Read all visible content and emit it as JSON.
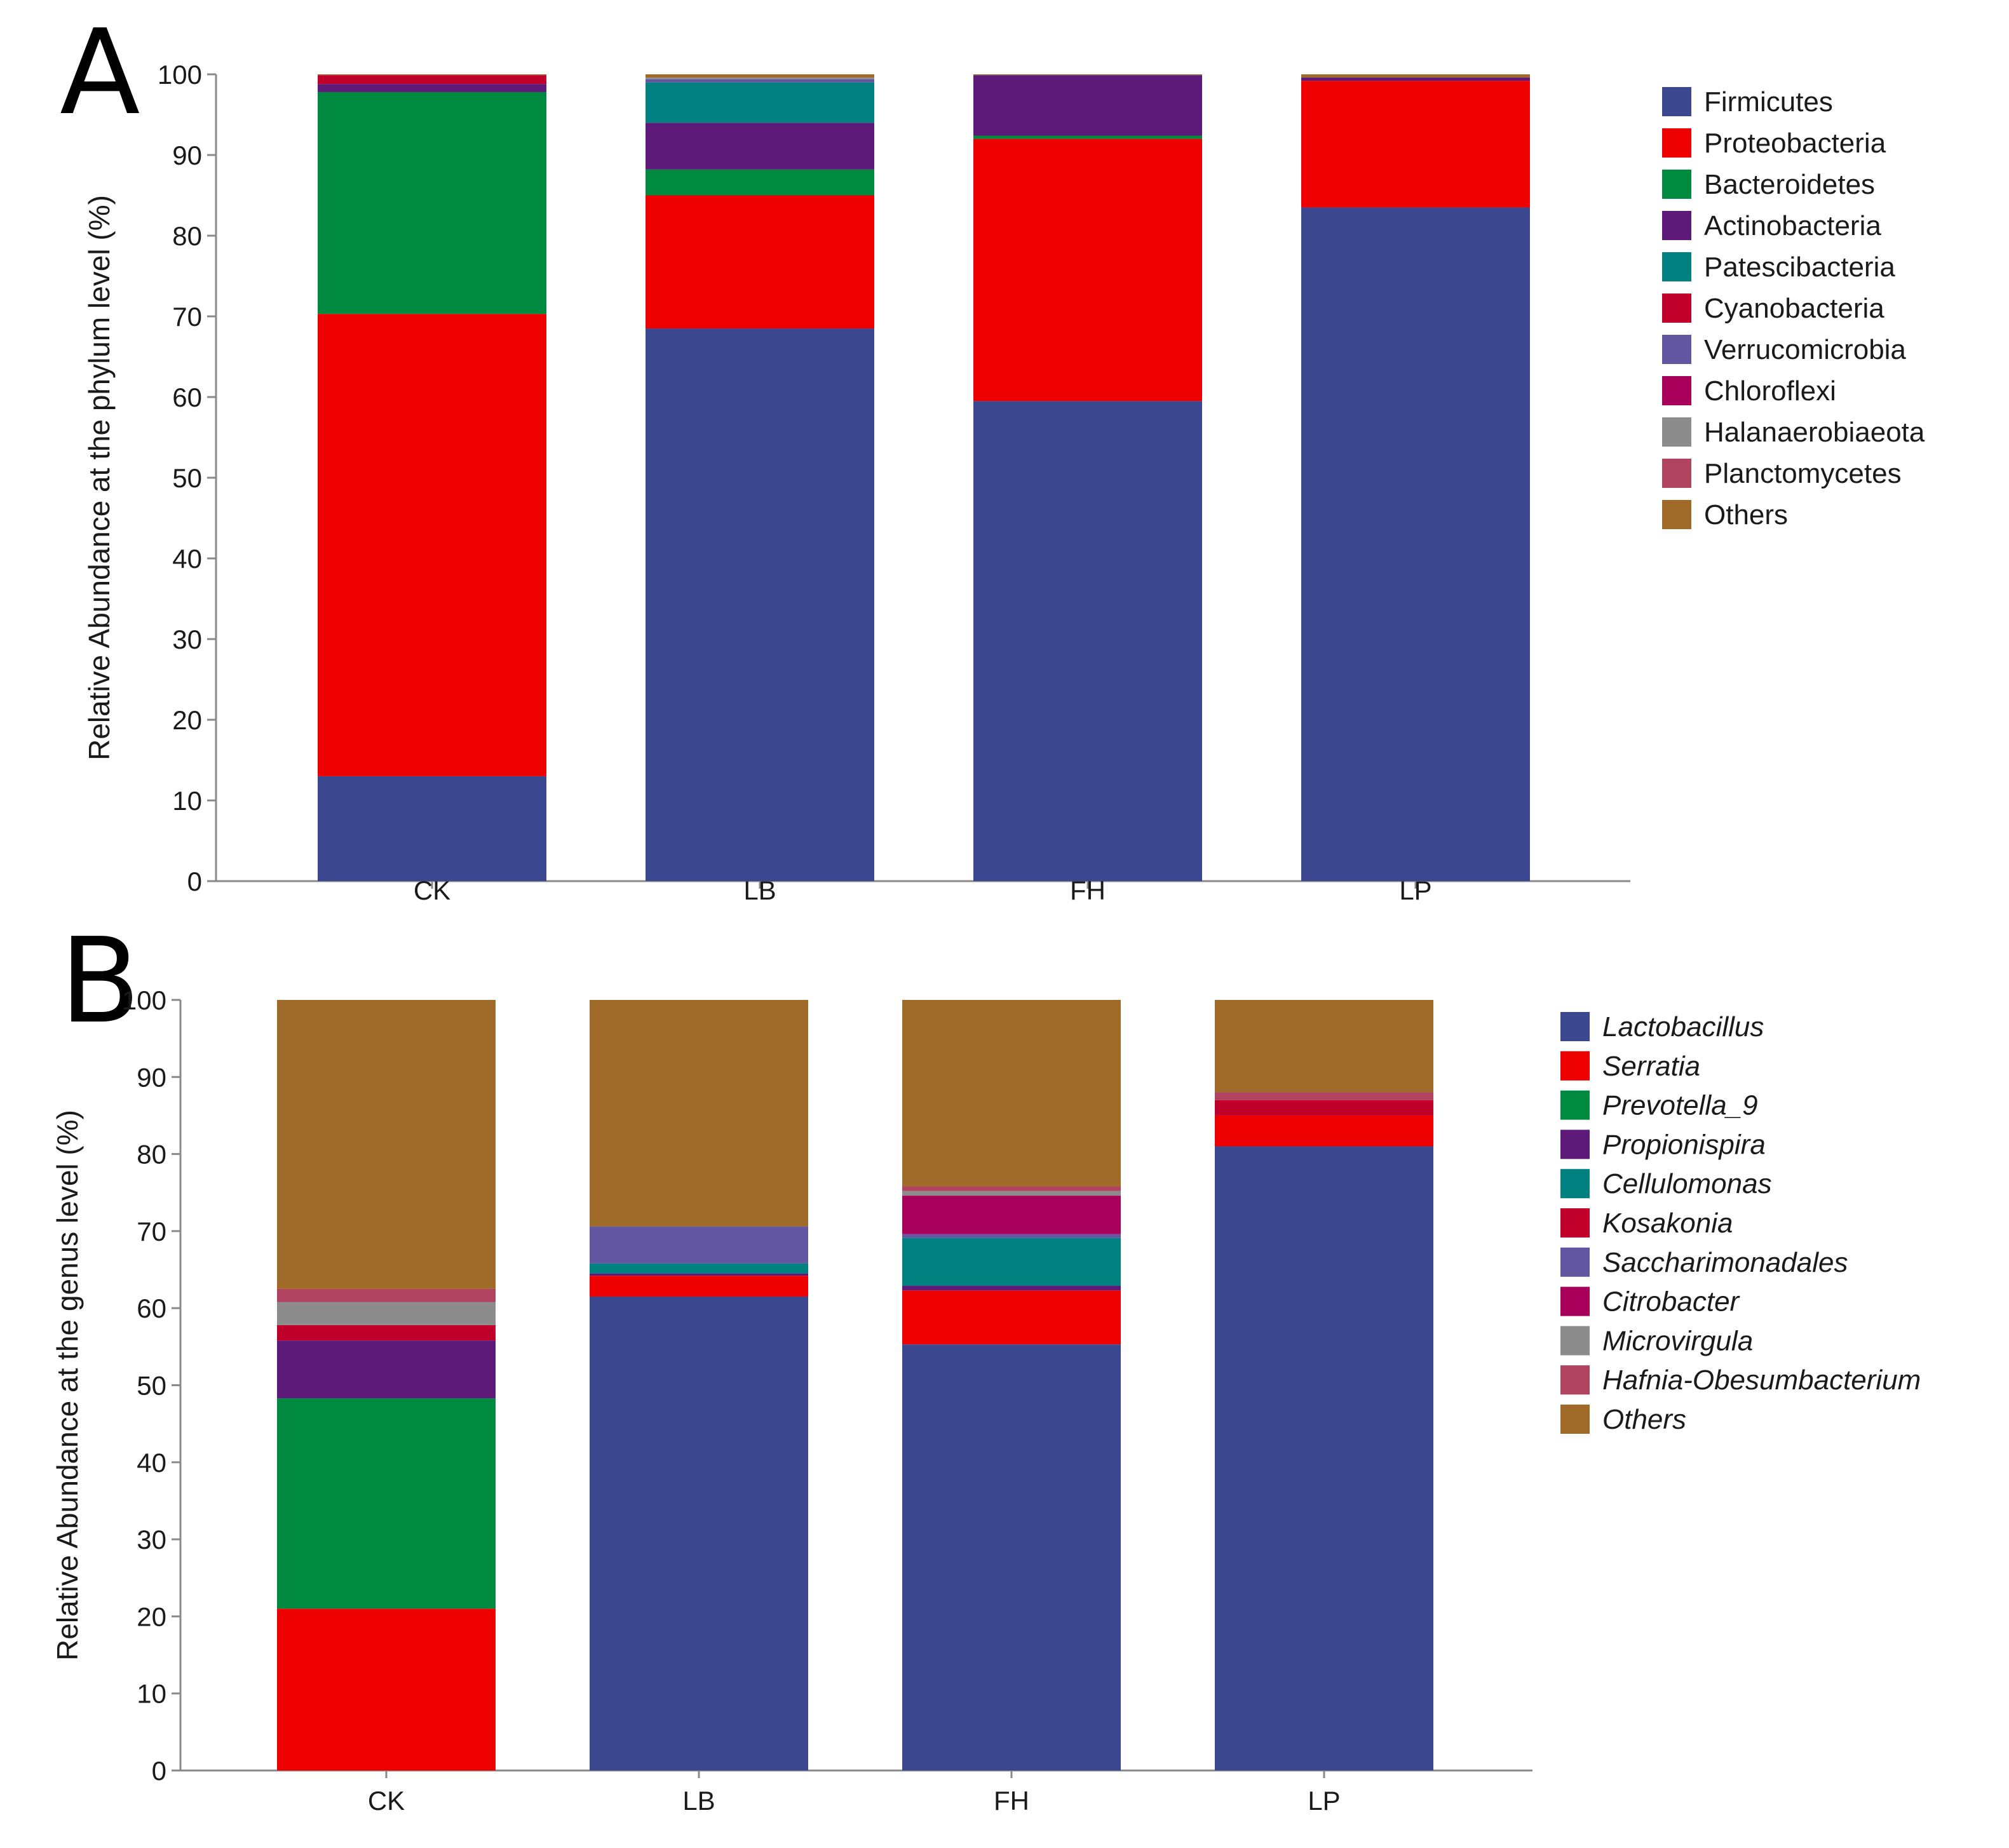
{
  "chart_data": [
    {
      "type": "bar",
      "stacked": true,
      "panel_label": "A",
      "ylabel": "Relative Abundance at the phylum level (%)",
      "xlabel": "",
      "ylim": [
        0,
        100
      ],
      "yticks": [
        0,
        10,
        20,
        30,
        40,
        50,
        60,
        70,
        80,
        90,
        100
      ],
      "categories": [
        "CK",
        "LB",
        "FH",
        "LP"
      ],
      "legend_position": "right",
      "legend_italic": false,
      "series": [
        {
          "name": "Firmicutes",
          "color": "#3b4890",
          "values": [
            13.0,
            68.5,
            59.5,
            83.5
          ]
        },
        {
          "name": "Proteobacteria",
          "color": "#ee0000",
          "values": [
            57.3,
            16.5,
            32.5,
            15.7
          ]
        },
        {
          "name": "Bacteroidetes",
          "color": "#008a40",
          "values": [
            27.5,
            3.2,
            0.4,
            0.0
          ]
        },
        {
          "name": "Actinobacteria",
          "color": "#5e1a78",
          "values": [
            1.0,
            5.8,
            7.5,
            0.4
          ]
        },
        {
          "name": "Patescibacteria",
          "color": "#00807f",
          "values": [
            0.0,
            5.0,
            0.0,
            0.0
          ]
        },
        {
          "name": "Cyanobacteria",
          "color": "#c0002a",
          "values": [
            1.1,
            0.0,
            0.0,
            0.0
          ]
        },
        {
          "name": "Verrucomicrobia",
          "color": "#6356a0",
          "values": [
            0.0,
            0.4,
            0.0,
            0.0
          ]
        },
        {
          "name": "Chloroflexi",
          "color": "#a8005a",
          "values": [
            0.0,
            0.0,
            0.0,
            0.0
          ]
        },
        {
          "name": "Halanaerobiaeota",
          "color": "#8c8c8c",
          "values": [
            0.0,
            0.2,
            0.0,
            0.0
          ]
        },
        {
          "name": "Planctomycetes",
          "color": "#b04360",
          "values": [
            0.0,
            0.0,
            0.0,
            0.0
          ]
        },
        {
          "name": "Others",
          "color": "#a06a28",
          "values": [
            0.1,
            0.4,
            0.1,
            0.4
          ]
        }
      ]
    },
    {
      "type": "bar",
      "stacked": true,
      "panel_label": "B",
      "ylabel": "Relative Abundance at the genus level (%)",
      "xlabel": "",
      "ylim": [
        0,
        100
      ],
      "yticks": [
        0,
        10,
        20,
        30,
        40,
        50,
        60,
        70,
        80,
        90,
        100
      ],
      "categories": [
        "CK",
        "LB",
        "FH",
        "LP"
      ],
      "legend_position": "right",
      "legend_italic": true,
      "series": [
        {
          "name": "Lactobacillus",
          "color": "#3b4890",
          "values": [
            0.0,
            61.5,
            55.3,
            81.0
          ]
        },
        {
          "name": "Serratia",
          "color": "#ee0000",
          "values": [
            21.0,
            2.7,
            7.0,
            4.0
          ]
        },
        {
          "name": "Prevotella_9",
          "color": "#008a40",
          "values": [
            27.3,
            0.0,
            0.0,
            0.0
          ]
        },
        {
          "name": "Propionispira",
          "color": "#5e1a78",
          "values": [
            7.5,
            0.3,
            0.6,
            0.0
          ]
        },
        {
          "name": "Cellulomonas",
          "color": "#00807f",
          "values": [
            0.0,
            1.3,
            6.2,
            0.0
          ]
        },
        {
          "name": "Kosakonia",
          "color": "#c0002a",
          "values": [
            2.0,
            0.0,
            0.0,
            2.0
          ]
        },
        {
          "name": "Saccharimonadales",
          "color": "#6356a0",
          "values": [
            0.0,
            4.8,
            0.5,
            0.0
          ]
        },
        {
          "name": "Citrobacter",
          "color": "#a8005a",
          "values": [
            0.0,
            0.0,
            5.0,
            0.0
          ]
        },
        {
          "name": "Microvirgula",
          "color": "#8c8c8c",
          "values": [
            3.0,
            0.0,
            0.6,
            0.0
          ]
        },
        {
          "name": "Hafnia-Obesumbacterium",
          "color": "#b04360",
          "values": [
            1.7,
            0.0,
            0.6,
            1.0
          ]
        },
        {
          "name": "Others",
          "color": "#a06a28",
          "values": [
            37.5,
            29.4,
            24.2,
            12.0
          ]
        }
      ]
    }
  ]
}
